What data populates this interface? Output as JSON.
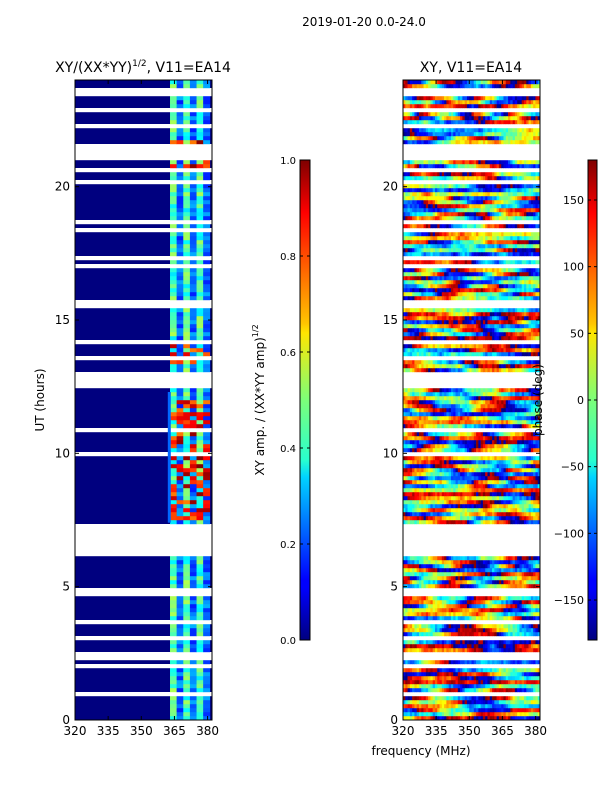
{
  "figure_title": "2019-01-20 0.0-24.0",
  "chart_data": [
    {
      "type": "heatmap",
      "title": "XY/(XX*YY)",
      "title_superscript": "1/2",
      "title_suffix": ", V11=EA14",
      "xlabel": "",
      "ylabel": "UT (hours)",
      "xlim": [
        320,
        382
      ],
      "ylim": [
        0,
        24
      ],
      "xticks": [
        "320",
        "335",
        "350",
        "365",
        "380"
      ],
      "xtick_values": [
        320,
        335,
        350,
        365,
        380
      ],
      "yticks": [
        "0",
        "5",
        "10",
        "15",
        "20"
      ],
      "ytick_values": [
        0,
        5,
        10,
        15,
        20
      ],
      "colorbar": {
        "label": "XY amp. / (XX*YY amp)",
        "label_superscript": "1/2",
        "range": [
          0.0,
          1.0
        ],
        "ticks": [
          "0.0",
          "0.2",
          "0.4",
          "0.6",
          "0.8",
          "1.0"
        ],
        "tick_values": [
          0.0,
          0.2,
          0.4,
          0.6,
          0.8,
          1.0
        ]
      },
      "description_values": {
        "background_level": 0.0,
        "active_band_mhz": [
          362,
          381
        ],
        "flagged_hours": [
          [
            6.2,
            7.3
          ],
          [
            4.6,
            5.0
          ],
          [
            12.5,
            13.0
          ]
        ]
      }
    },
    {
      "type": "heatmap",
      "title": "XY, V11=EA14",
      "xlabel": "frequency (MHz)",
      "ylabel": "",
      "xlim": [
        320,
        382
      ],
      "ylim": [
        0,
        24
      ],
      "xticks": [
        "320",
        "335",
        "350",
        "365",
        "380"
      ],
      "xtick_values": [
        320,
        335,
        350,
        365,
        380
      ],
      "yticks": [
        "0",
        "5",
        "10",
        "15",
        "20"
      ],
      "ytick_values": [
        0,
        5,
        10,
        15,
        20
      ],
      "colorbar": {
        "label": "phase (deg)",
        "range": [
          -180,
          180
        ],
        "ticks": [
          "−150",
          "−100",
          "−50",
          "0",
          "50",
          "100",
          "150"
        ],
        "tick_values": [
          -150,
          -100,
          -50,
          0,
          50,
          100,
          150
        ]
      }
    }
  ]
}
